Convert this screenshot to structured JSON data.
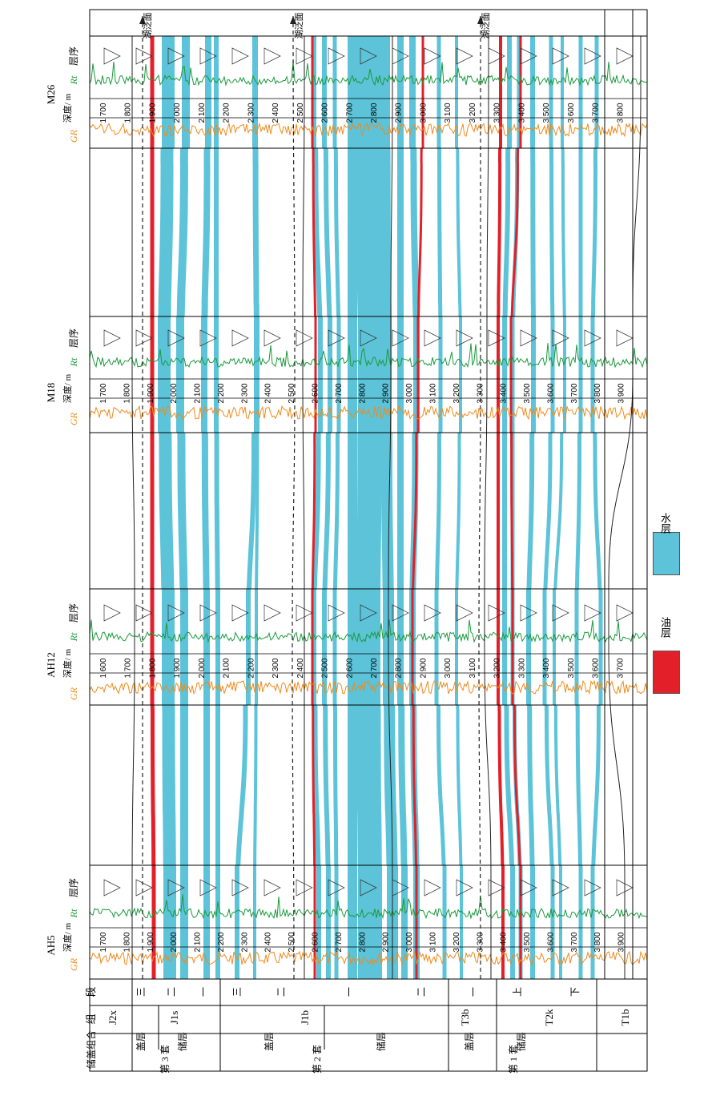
{
  "colors": {
    "water": "#5cc3d8",
    "oil": "#e3202a",
    "gr_curve": "#f08a1c",
    "rt_curve": "#1a9a3c",
    "grid": "#000000"
  },
  "wells": [
    {
      "name": "AH5",
      "gr_label": "GR",
      "depth_label": "深度/\nm",
      "rt_label": "Rt",
      "seq_label": "层序",
      "depth_ticks": [
        "1 700",
        "1 800",
        "1 900",
        "2 000",
        "2 100",
        "2 200",
        "2 300",
        "2 400",
        "2 500",
        "2 600",
        "2 700",
        "2 800",
        "2 900",
        "3 000",
        "3 100",
        "3 200",
        "3 300",
        "3 400",
        "3 500",
        "3 600",
        "3 700",
        "3 800",
        "3 900"
      ]
    },
    {
      "name": "AH12",
      "gr_label": "GR",
      "depth_label": "深度/\nm",
      "rt_label": "Rt",
      "seq_label": "层序",
      "depth_ticks": [
        "1 600",
        "1 700",
        "1 800",
        "1 900",
        "2 000",
        "2 100",
        "2 200",
        "2 300",
        "2 400",
        "2 500",
        "2 600",
        "2 700",
        "2 800",
        "2 900",
        "3 000",
        "3 100",
        "3 200",
        "3 300",
        "3 400",
        "3 500",
        "3 600",
        "3 700"
      ]
    },
    {
      "name": "M18",
      "gr_label": "GR",
      "depth_label": "深度/\nm",
      "rt_label": "Rt",
      "seq_label": "层序",
      "depth_ticks": [
        "1 700",
        "1 800",
        "1 900",
        "2 000",
        "2 100",
        "2 200",
        "2 300",
        "2 400",
        "2 500",
        "2 600",
        "2 700",
        "2 800",
        "2 900",
        "3 000",
        "3 100",
        "3 200",
        "3 300",
        "3 400",
        "3 500",
        "3 600",
        "3 700",
        "3 800",
        "3 900"
      ]
    },
    {
      "name": "M26",
      "gr_label": "GR",
      "depth_label": "深度/\nm",
      "rt_label": "Rt",
      "seq_label": "层序",
      "depth_ticks": [
        "1 700",
        "1 800",
        "1 900",
        "2 000",
        "2 100",
        "2 200",
        "2 300",
        "2 400",
        "2 500",
        "2 600",
        "2 700",
        "2 800",
        "2 900",
        "3 000",
        "3 100",
        "3 200",
        "3 300",
        "3 400",
        "3 500",
        "3 600",
        "3 700",
        "3 800"
      ]
    }
  ],
  "header": {
    "col_duan": "段",
    "col_zu": "组",
    "col_chugai": "储盖\n组合"
  },
  "formations": [
    "J2x",
    "J1s",
    "J1b",
    "T3b",
    "T2k",
    "T1b"
  ],
  "sections": [
    "三",
    "二",
    "一",
    "三",
    "二",
    "一",
    "二",
    "一",
    "上",
    "下"
  ],
  "combos": {
    "set3": {
      "seal": "盖层",
      "reservoir": "储层",
      "label": "第 3 套"
    },
    "set2": {
      "seal": "盖层",
      "reservoir": "储层",
      "label": "第 2 套"
    },
    "set1": {
      "seal": "盖层",
      "reservoir": "储层",
      "label": "第 1 套"
    }
  },
  "flooding_surface_label": "湖泛面",
  "legend": {
    "oil": "油层",
    "water": "水层"
  }
}
